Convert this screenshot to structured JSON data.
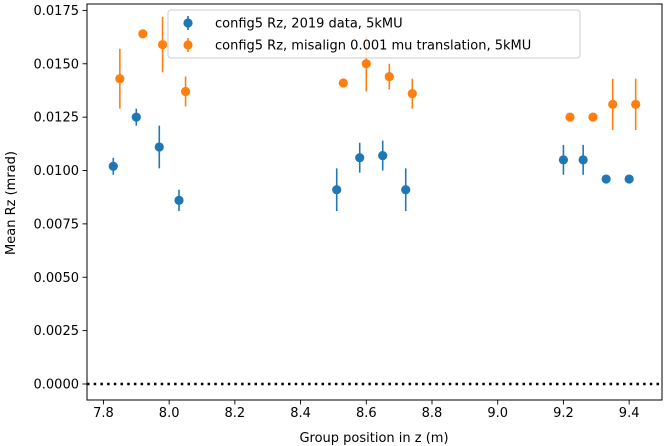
{
  "chart_data": {
    "type": "scatter",
    "title": "",
    "xlabel": "Group position in z (m)",
    "ylabel": "Mean Rz (mrad)",
    "xlim": [
      7.75,
      9.5
    ],
    "ylim": [
      -0.00075,
      0.0178
    ],
    "xticks": [
      "7.8",
      "8.0",
      "8.2",
      "8.4",
      "8.6",
      "8.8",
      "9.0",
      "9.2",
      "9.4"
    ],
    "xtick_values": [
      7.8,
      8.0,
      8.2,
      8.4,
      8.6,
      8.8,
      9.0,
      9.2,
      9.4
    ],
    "yticks": [
      "0.0000",
      "0.0025",
      "0.0050",
      "0.0075",
      "0.0100",
      "0.0125",
      "0.0150",
      "0.0175"
    ],
    "ytick_values": [
      0.0,
      0.0025,
      0.005,
      0.0075,
      0.01,
      0.0125,
      0.015,
      0.0175
    ],
    "grid": false,
    "legend_position": "top-center",
    "reference_line": {
      "y": 0.0,
      "style": "dotted",
      "color": "#000000"
    },
    "series": [
      {
        "name": "config5 Rz, 2019 data, 5kMU",
        "color": "#1f77b4",
        "points": [
          {
            "x": 7.83,
            "y": 0.0102,
            "err": 0.0004
          },
          {
            "x": 7.9,
            "y": 0.0125,
            "err": 0.0004
          },
          {
            "x": 7.97,
            "y": 0.0111,
            "err": 0.001
          },
          {
            "x": 8.03,
            "y": 0.0086,
            "err": 0.0005
          },
          {
            "x": 8.51,
            "y": 0.0091,
            "err": 0.001
          },
          {
            "x": 8.58,
            "y": 0.0106,
            "err": 0.0007
          },
          {
            "x": 8.65,
            "y": 0.0107,
            "err": 0.0007
          },
          {
            "x": 8.72,
            "y": 0.0091,
            "err": 0.001
          },
          {
            "x": 9.2,
            "y": 0.0105,
            "err": 0.0007
          },
          {
            "x": 9.26,
            "y": 0.0105,
            "err": 0.0007
          },
          {
            "x": 9.33,
            "y": 0.0096,
            "err": 0.0
          },
          {
            "x": 9.4,
            "y": 0.0096,
            "err": 0.0
          }
        ]
      },
      {
        "name": "config5 Rz, misalign 0.001 mu translation, 5kMU",
        "color": "#ff7f0e",
        "points": [
          {
            "x": 7.85,
            "y": 0.0143,
            "err": 0.0014
          },
          {
            "x": 7.92,
            "y": 0.0164,
            "err": 0.0
          },
          {
            "x": 7.98,
            "y": 0.0159,
            "err": 0.0013
          },
          {
            "x": 8.05,
            "y": 0.0137,
            "err": 0.0007
          },
          {
            "x": 8.53,
            "y": 0.0141,
            "err": 0.0
          },
          {
            "x": 8.6,
            "y": 0.015,
            "err": 0.0013
          },
          {
            "x": 8.67,
            "y": 0.0144,
            "err": 0.0006
          },
          {
            "x": 8.74,
            "y": 0.0136,
            "err": 0.0007
          },
          {
            "x": 9.22,
            "y": 0.0125,
            "err": 0.0002
          },
          {
            "x": 9.29,
            "y": 0.0125,
            "err": 0.0002
          },
          {
            "x": 9.35,
            "y": 0.0131,
            "err": 0.0012
          },
          {
            "x": 9.42,
            "y": 0.0131,
            "err": 0.0012
          }
        ]
      }
    ]
  }
}
